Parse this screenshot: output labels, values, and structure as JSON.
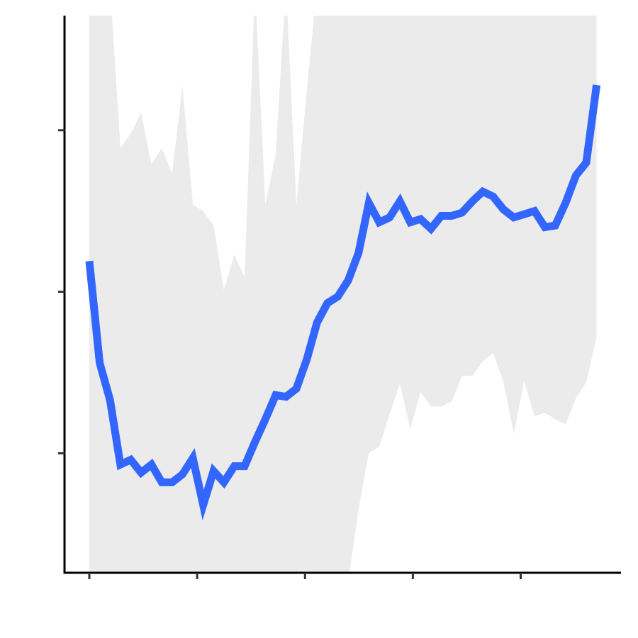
{
  "chart_data": {
    "type": "line",
    "x": [
      0,
      0.96,
      1.92,
      2.88,
      3.84,
      4.8,
      5.76,
      6.72,
      7.68,
      8.64,
      9.6,
      10.56,
      11.52,
      12.48,
      13.44,
      14.4,
      15.36,
      16.32,
      17.28,
      18.24,
      19.2,
      20.16,
      21.12,
      22.08,
      23.04,
      24,
      24.96,
      25.92,
      26.88,
      27.84,
      28.8,
      29.76,
      30.72,
      31.68,
      32.64,
      33.6,
      34.56,
      35.52,
      36.48,
      37.44,
      38.4,
      39.36,
      40.32,
      41.28,
      42.24,
      43.2,
      44.16,
      45.12,
      46.08,
      47.04
    ],
    "series": [
      {
        "color": "#3366ff",
        "band_color": "#ebebeb",
        "values": [
          2.19,
          1.56,
          1.33,
          0.93,
          0.96,
          0.88,
          0.93,
          0.82,
          0.82,
          0.87,
          0.97,
          0.68,
          0.89,
          0.82,
          0.92,
          0.92,
          1.07,
          1.21,
          1.36,
          1.35,
          1.4,
          1.58,
          1.81,
          1.93,
          1.97,
          2.07,
          2.24,
          2.55,
          2.43,
          2.46,
          2.56,
          2.43,
          2.45,
          2.39,
          2.47,
          2.47,
          2.49,
          2.56,
          2.62,
          2.59,
          2.51,
          2.46,
          2.48,
          2.5,
          2.4,
          2.41,
          2.55,
          2.72,
          2.8,
          3.28
        ],
        "band_lower": [
          0.1,
          0.1,
          0.1,
          0.1,
          0.1,
          0.1,
          0.1,
          0.1,
          0.1,
          0.1,
          0.1,
          0.1,
          0.1,
          0.1,
          0.1,
          0.1,
          0.1,
          0.1,
          0.1,
          0.1,
          0.1,
          0.1,
          0.1,
          0.1,
          0.1,
          0.2,
          0.65,
          1.0,
          1.04,
          1.24,
          1.43,
          1.15,
          1.38,
          1.29,
          1.29,
          1.32,
          1.48,
          1.48,
          1.57,
          1.62,
          1.44,
          1.12,
          1.45,
          1.23,
          1.25,
          1.21,
          1.18,
          1.34,
          1.44,
          1.72
        ],
        "band_upper": [
          3.9,
          3.9,
          3.9,
          2.89,
          2.98,
          3.11,
          2.79,
          2.89,
          2.73,
          3.28,
          2.54,
          2.5,
          2.41,
          2.01,
          2.23,
          2.09,
          3.9,
          2.54,
          2.85,
          3.9,
          2.54,
          3.24,
          3.9,
          3.9,
          3.9,
          3.9,
          3.9,
          3.9,
          3.9,
          3.9,
          3.9,
          3.9,
          3.9,
          3.9,
          3.9,
          3.9,
          3.9,
          3.9,
          3.9,
          3.9,
          3.9,
          3.9,
          3.9,
          3.9,
          3.9,
          3.9,
          3.9,
          3.9,
          3.9,
          3.9
        ]
      }
    ],
    "xlim": [
      -2.3,
      49.3
    ],
    "ylim": [
      0.26,
      3.71
    ],
    "xticks": [
      0,
      10,
      20,
      30,
      40
    ],
    "yticks": [
      1,
      2,
      3
    ],
    "grid": false
  }
}
